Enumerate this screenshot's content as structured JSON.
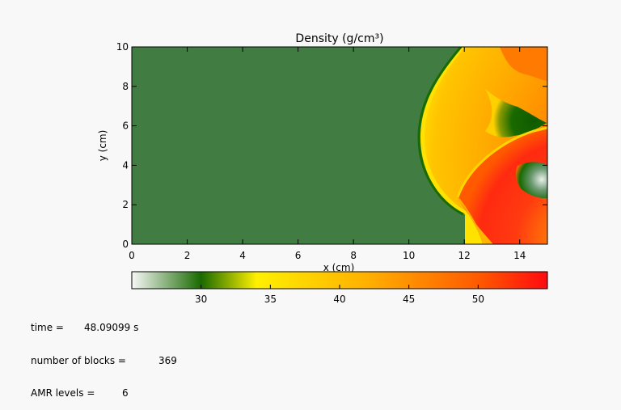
{
  "chart_data": {
    "type": "heatmap",
    "title": "Density (g/cm³)",
    "xlabel": "x (cm)",
    "ylabel": "y (cm)",
    "xlim": [
      0,
      15
    ],
    "ylim": [
      0,
      10
    ],
    "x_ticks": [
      "0",
      "2",
      "4",
      "6",
      "8",
      "10",
      "12",
      "14"
    ],
    "y_ticks": [
      "0",
      "2",
      "4",
      "6",
      "8",
      "10"
    ],
    "background_value": 30,
    "colorbar": {
      "range": [
        25,
        55
      ],
      "ticks": [
        "30",
        "35",
        "40",
        "45",
        "50"
      ],
      "stops": [
        {
          "value": 25,
          "color": "#f8f8f8"
        },
        {
          "value": 30,
          "color": "#196a00"
        },
        {
          "value": 34,
          "color": "#fff000"
        },
        {
          "value": 42,
          "color": "#ffb000"
        },
        {
          "value": 50,
          "color": "#ff5a00"
        },
        {
          "value": 55,
          "color": "#ff0a10"
        }
      ]
    },
    "colors": {
      "ambient": "#417d42",
      "shock_orange": "#ffb000",
      "shock_red": "#ff4010",
      "dark_green": "#196a00",
      "yellow": "#ffe400"
    }
  },
  "info": {
    "time_label": "time =",
    "time_value": "48.09099 s",
    "blocks_label": "number of blocks =",
    "blocks_value": "369",
    "levels_label": "AMR levels =",
    "levels_value": "6"
  }
}
